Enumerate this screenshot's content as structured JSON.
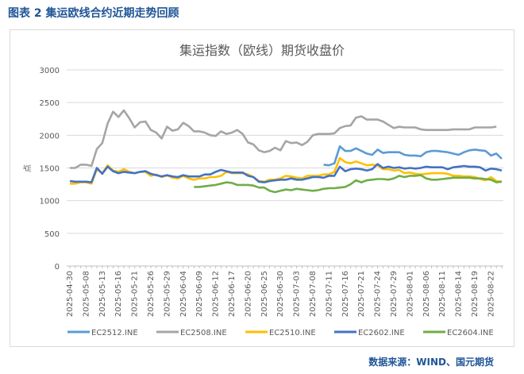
{
  "heading": "图表 2  集运欧线合约近期走势回顾",
  "source": "数据来源：WIND、国元期货",
  "chart_data": {
    "type": "line",
    "title": "集运指数（欧线）期货收盘价",
    "ylabel": "点",
    "xlabel": "",
    "ylim": [
      0,
      3000
    ],
    "yticks": [
      0,
      500,
      1000,
      1500,
      2000,
      2500,
      3000
    ],
    "grid": true,
    "legend_position": "bottom",
    "x": [
      "2025-04-30",
      "2025-05-06",
      "2025-05-07",
      "2025-05-08",
      "2025-05-09",
      "2025-05-12",
      "2025-05-13",
      "2025-05-14",
      "2025-05-15",
      "2025-05-16",
      "2025-05-19",
      "2025-05-20",
      "2025-05-21",
      "2025-05-22",
      "2025-05-23",
      "2025-05-26",
      "2025-05-27",
      "2025-05-28",
      "2025-05-29",
      "2025-05-30",
      "2025-06-03",
      "2025-06-04",
      "2025-06-05",
      "2025-06-06",
      "2025-06-09",
      "2025-06-10",
      "2025-06-11",
      "2025-06-12",
      "2025-06-13",
      "2025-06-16",
      "2025-06-17",
      "2025-06-18",
      "2025-06-19",
      "2025-06-20",
      "2025-06-23",
      "2025-06-24",
      "2025-06-25",
      "2025-06-26",
      "2025-06-27",
      "2025-06-30",
      "2025-07-01",
      "2025-07-02",
      "2025-07-03",
      "2025-07-04",
      "2025-07-07",
      "2025-07-08",
      "2025-07-09",
      "2025-07-10",
      "2025-07-11",
      "2025-07-14",
      "2025-07-15",
      "2025-07-16",
      "2025-07-17",
      "2025-07-18",
      "2025-07-21",
      "2025-07-22",
      "2025-07-23",
      "2025-07-24",
      "2025-07-25",
      "2025-07-28",
      "2025-07-29",
      "2025-07-30",
      "2025-07-31",
      "2025-08-01",
      "2025-08-04",
      "2025-08-05",
      "2025-08-06",
      "2025-08-07",
      "2025-08-08",
      "2025-08-11",
      "2025-08-12",
      "2025-08-13",
      "2025-08-14",
      "2025-08-15",
      "2025-08-18",
      "2025-08-19",
      "2025-08-20",
      "2025-08-21",
      "2025-08-22",
      "2025-08-25",
      "2025-08-26"
    ],
    "tick_every": 3,
    "series": [
      {
        "name": "EC2512.INE",
        "color": "#5b9bd5",
        "values": [
          null,
          null,
          null,
          null,
          null,
          null,
          null,
          null,
          null,
          null,
          null,
          null,
          null,
          null,
          null,
          null,
          null,
          null,
          null,
          null,
          null,
          null,
          null,
          null,
          null,
          null,
          null,
          null,
          null,
          null,
          null,
          null,
          null,
          null,
          null,
          null,
          null,
          null,
          null,
          null,
          null,
          null,
          null,
          null,
          null,
          null,
          null,
          1550,
          1540,
          1570,
          1830,
          1760,
          1760,
          1800,
          1760,
          1720,
          1700,
          1780,
          1730,
          1740,
          1740,
          1740,
          1700,
          1690,
          1690,
          1680,
          1740,
          1760,
          1760,
          1750,
          1740,
          1720,
          1700,
          1740,
          1770,
          1780,
          1770,
          1760,
          1690,
          1720,
          1640
        ]
      },
      {
        "name": "EC2508.INE",
        "color": "#a5a5a5",
        "values": [
          1500,
          1500,
          1550,
          1550,
          1530,
          1790,
          1880,
          2180,
          2360,
          2280,
          2380,
          2260,
          2120,
          2200,
          2210,
          2080,
          2040,
          1950,
          2130,
          2070,
          2090,
          2190,
          2140,
          2060,
          2060,
          2040,
          2000,
          1990,
          2060,
          2020,
          2040,
          2080,
          2020,
          1890,
          1860,
          1770,
          1740,
          1760,
          1810,
          1770,
          1910,
          1880,
          1890,
          1850,
          1900,
          2000,
          2020,
          2020,
          2020,
          2030,
          2110,
          2140,
          2150,
          2270,
          2290,
          2240,
          2240,
          2240,
          2210,
          2160,
          2110,
          2130,
          2120,
          2120,
          2120,
          2090,
          2080,
          2080,
          2080,
          2080,
          2080,
          2090,
          2090,
          2090,
          2090,
          2120,
          2120,
          2120,
          2120,
          2130,
          null
        ]
      },
      {
        "name": "EC2510.INE",
        "color": "#ffc000",
        "values": [
          1260,
          1260,
          1280,
          1280,
          1260,
          1480,
          1420,
          1540,
          1460,
          1440,
          1480,
          1440,
          1420,
          1440,
          1440,
          1380,
          1400,
          1360,
          1390,
          1350,
          1340,
          1380,
          1340,
          1320,
          1340,
          1340,
          1360,
          1360,
          1380,
          1440,
          1420,
          1420,
          1420,
          1400,
          1360,
          1300,
          1290,
          1320,
          1320,
          1340,
          1380,
          1370,
          1350,
          1340,
          1380,
          1380,
          1380,
          1400,
          1400,
          1440,
          1650,
          1590,
          1570,
          1600,
          1570,
          1540,
          1550,
          1540,
          1480,
          1480,
          1460,
          1470,
          1420,
          1430,
          1410,
          1400,
          1410,
          1420,
          1420,
          1420,
          1410,
          1380,
          1380,
          1370,
          1370,
          1360,
          1330,
          1310,
          1360,
          1300,
          1290
        ]
      },
      {
        "name": "EC2602.INE",
        "color": "#4472c4",
        "values": [
          1300,
          1290,
          1290,
          1290,
          1280,
          1500,
          1410,
          1520,
          1450,
          1420,
          1440,
          1430,
          1420,
          1440,
          1450,
          1410,
          1390,
          1370,
          1390,
          1370,
          1360,
          1390,
          1370,
          1370,
          1370,
          1400,
          1400,
          1440,
          1470,
          1450,
          1430,
          1430,
          1430,
          1380,
          1360,
          1290,
          1280,
          1300,
          1310,
          1320,
          1320,
          1340,
          1320,
          1320,
          1340,
          1360,
          1360,
          1350,
          1380,
          1380,
          1520,
          1450,
          1480,
          1490,
          1480,
          1460,
          1480,
          1560,
          1500,
          1520,
          1500,
          1510,
          1490,
          1500,
          1490,
          1500,
          1520,
          1510,
          1510,
          1510,
          1480,
          1510,
          1520,
          1530,
          1520,
          1520,
          1510,
          1460,
          1490,
          1480,
          1460
        ]
      },
      {
        "name": "EC2604.INE",
        "color": "#70ad47",
        "values": [
          null,
          null,
          null,
          null,
          null,
          null,
          null,
          null,
          null,
          null,
          null,
          null,
          null,
          null,
          null,
          null,
          null,
          null,
          null,
          null,
          null,
          null,
          null,
          1210,
          1210,
          1220,
          1230,
          1240,
          1260,
          1280,
          1270,
          1240,
          1240,
          1240,
          1230,
          1200,
          1200,
          1150,
          1130,
          1150,
          1170,
          1160,
          1180,
          1170,
          1160,
          1150,
          1160,
          1180,
          1190,
          1190,
          1200,
          1210,
          1250,
          1310,
          1280,
          1310,
          1320,
          1330,
          1330,
          1320,
          1340,
          1380,
          1360,
          1380,
          1380,
          1390,
          1340,
          1320,
          1320,
          1330,
          1340,
          1350,
          1350,
          1350,
          1350,
          1340,
          1340,
          1330,
          1320,
          1280,
          1290
        ]
      }
    ]
  }
}
